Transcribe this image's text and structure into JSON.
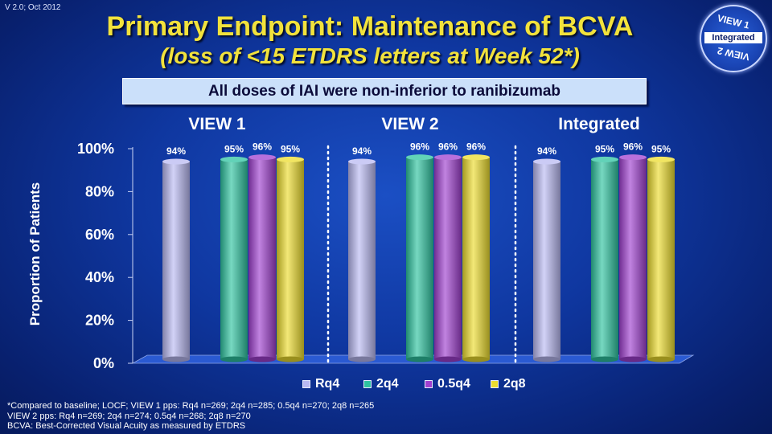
{
  "version": "V 2.0; Oct 2012",
  "title": "Primary Endpoint: Maintenance of BCVA",
  "subtitle": "(loss of <15 ETDRS letters at Week 52*)",
  "badge": {
    "top": "VIEW 1",
    "middle": "Integrated",
    "bottom": "VIEW 2"
  },
  "banner": "All doses of IAI were non-inferior to ranibizumab",
  "colors": {
    "Rq4": "#b9b9f2",
    "2q4": "#2ec3a0",
    "0.5q4": "#a040d0",
    "2q8": "#ecdc2e"
  },
  "chart_data": {
    "type": "bar",
    "ylabel": "Proportion of Patients",
    "ylim": [
      0,
      100
    ],
    "yticks": [
      "0%",
      "20%",
      "40%",
      "60%",
      "80%",
      "100%"
    ],
    "grid": false,
    "legend": "bottom",
    "groups": [
      "VIEW 1",
      "VIEW 2",
      "Integrated"
    ],
    "series": [
      {
        "name": "Rq4",
        "values": [
          94,
          94,
          94
        ]
      },
      {
        "name": "2q4",
        "values": [
          95,
          96,
          95
        ]
      },
      {
        "name": "0.5q4",
        "values": [
          96,
          96,
          96
        ]
      },
      {
        "name": "2q8",
        "values": [
          95,
          96,
          95
        ]
      }
    ]
  },
  "footnotes": [
    "*Compared to baseline; LOCF; VIEW 1 pps: Rq4 n=269; 2q4 n=285; 0.5q4 n=270; 2q8 n=265",
    "VIEW 2 pps: Rq4 n=269; 2q4 n=274; 0.5q4 n=268; 2q8 n=270",
    "BCVA: Best-Corrected Visual Acuity as measured by ETDRS"
  ]
}
